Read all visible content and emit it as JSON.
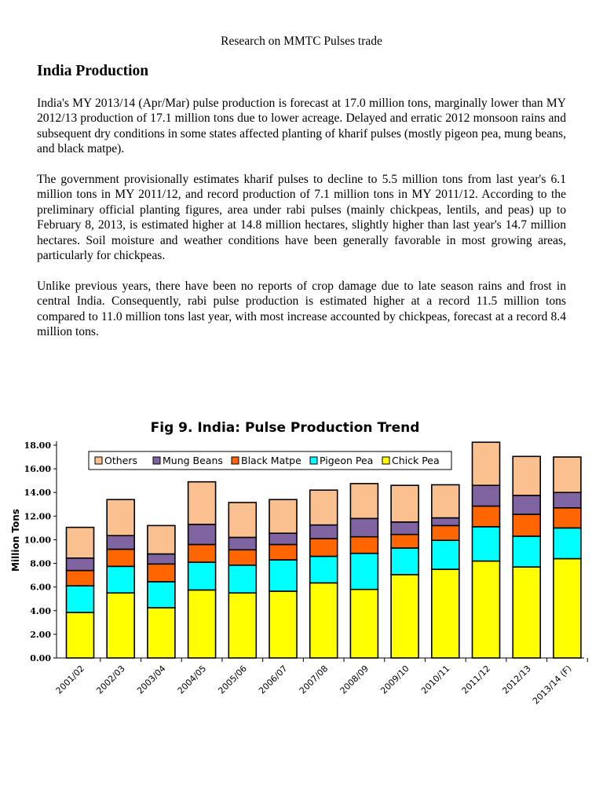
{
  "header": "Research on MMTC Pulses trade",
  "heading": "India Production",
  "paragraphs": [
    "India's MY 2013/14 (Apr/Mar) pulse production is forecast at 17.0 million tons, marginally lower than MY 2012/13 production of 17.1 million tons due to lower acreage. Delayed and erratic 2012 monsoon rains and subsequent dry conditions in some states affected planting of kharif pulses (mostly pigeon pea, mung beans, and black matpe).",
    "The government provisionally estimates kharif pulses to decline to 5.5 million tons from last year's 6.1 million tons in MY 2011/12, and record production of 7.1 million tons in MY 2011/12. According to the preliminary official planting figures, area under rabi pulses (mainly chickpeas, lentils, and peas) up to February 8, 2013, is estimated higher at 14.8 million hectares, slightly higher than last year's 14.7 million hectares. Soil moisture and weather conditions have been generally favorable in most growing areas, particularly for chickpeas.",
    "Unlike previous years, there have been no reports of crop damage due to late season rains and frost in central India. Consequently, rabi pulse production is estimated higher at a record 11.5 million tons compared to 11.0 million tons last year, with most increase accounted by chickpeas, forecast at a record 8.4 million tons."
  ],
  "chart_data": {
    "type": "bar",
    "stacked": true,
    "title": "Fig 9. India: Pulse Production Trend",
    "xlabel": "",
    "ylabel": "Million Tons",
    "ylim": [
      0,
      18
    ],
    "yticks": [
      "0.00",
      "2.00",
      "4.00",
      "6.00",
      "8.00",
      "10.00",
      "12.00",
      "14.00",
      "16.00",
      "18.00"
    ],
    "grid": false,
    "legend_position": "top",
    "legend_order": [
      "Others",
      "Mung Beans",
      "Black Matpe",
      "Pigeon Pea",
      "Chick Pea"
    ],
    "categories": [
      "2001/02",
      "2002/03",
      "2003/04",
      "2004/05",
      "2005/06",
      "2006/07",
      "2007/08",
      "2008/09",
      "2009/10",
      "2010/11",
      "2011/12",
      "2012/13",
      "2013/14 (F)"
    ],
    "series": [
      {
        "name": "Chick Pea",
        "color": "#ffff00",
        "values": [
          3.85,
          5.5,
          4.25,
          5.75,
          5.5,
          5.65,
          6.35,
          5.8,
          7.05,
          7.5,
          8.2,
          7.7,
          8.4
        ]
      },
      {
        "name": "Pigeon Pea",
        "color": "#00ffff",
        "values": [
          2.25,
          2.25,
          2.2,
          2.35,
          2.35,
          2.65,
          2.25,
          3.05,
          2.25,
          2.45,
          2.9,
          2.6,
          2.6
        ]
      },
      {
        "name": "Black Matpe",
        "color": "#ff6600",
        "values": [
          1.3,
          1.45,
          1.5,
          1.5,
          1.3,
          1.3,
          1.5,
          1.4,
          1.15,
          1.25,
          1.75,
          1.85,
          1.7
        ]
      },
      {
        "name": "Mung Beans",
        "color": "#8064a2",
        "values": [
          1.05,
          1.15,
          0.85,
          1.7,
          1.05,
          0.95,
          1.15,
          1.55,
          1.05,
          0.65,
          1.75,
          1.6,
          1.3
        ]
      },
      {
        "name": "Others",
        "color": "#fac090",
        "values": [
          2.6,
          3.05,
          2.4,
          3.6,
          2.95,
          2.85,
          2.95,
          2.95,
          3.1,
          2.8,
          3.65,
          3.3,
          3.0
        ]
      }
    ]
  }
}
